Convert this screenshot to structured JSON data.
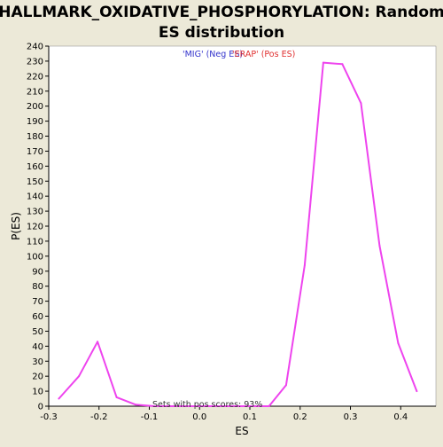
{
  "chart_data": {
    "type": "line",
    "title": "HALLMARK_OXIDATIVE_PHOSPHORYLATION: Random ES distribution",
    "title_lines": [
      "HALLMARK_OXIDATIVE_PHOSPHORYLATION: Random",
      "ES distribution"
    ],
    "xlabel": "ES",
    "ylabel": "P(ES)",
    "xlim": [
      -0.3,
      0.47
    ],
    "ylim": [
      0,
      240
    ],
    "x_ticks": [
      -0.3,
      -0.2,
      -0.1,
      0.0,
      0.1,
      0.2,
      0.3,
      0.4
    ],
    "x_tick_labels": [
      "-0.3",
      "-0.2",
      "-0.1",
      "0.0",
      "0.1",
      "0.2",
      "0.3",
      "0.4"
    ],
    "y_ticks": [
      0,
      10,
      20,
      30,
      40,
      50,
      60,
      70,
      80,
      90,
      100,
      110,
      120,
      130,
      140,
      150,
      160,
      170,
      180,
      190,
      200,
      210,
      220,
      230,
      240
    ],
    "grid": false,
    "series": [
      {
        "color": "#ee44ee",
        "x": [
          -0.28,
          -0.24,
          -0.203,
          -0.165,
          -0.127,
          -0.09,
          -0.052,
          -0.014,
          0.024,
          0.062,
          0.1,
          0.138,
          0.172,
          0.209,
          0.246,
          0.284,
          0.321,
          0.358,
          0.395,
          0.432
        ],
        "y": [
          5,
          20,
          43,
          6,
          1,
          0,
          0,
          0,
          0,
          0,
          0,
          0,
          14,
          94,
          229,
          228,
          202,
          107,
          42,
          10
        ]
      }
    ],
    "legend": {
      "placement": "top-center",
      "neg_label": "'MIG' (Neg ES)",
      "pos_label": "'ERAP' (Pos ES)",
      "neg_color": "#3333cc",
      "pos_color": "#e03030"
    },
    "annotation": "Sets with pos scores: 93%"
  },
  "colors": {
    "background": "#ece9d8",
    "plot_background": "#ffffff",
    "line": "#ee44ee",
    "axis": "#000000"
  }
}
